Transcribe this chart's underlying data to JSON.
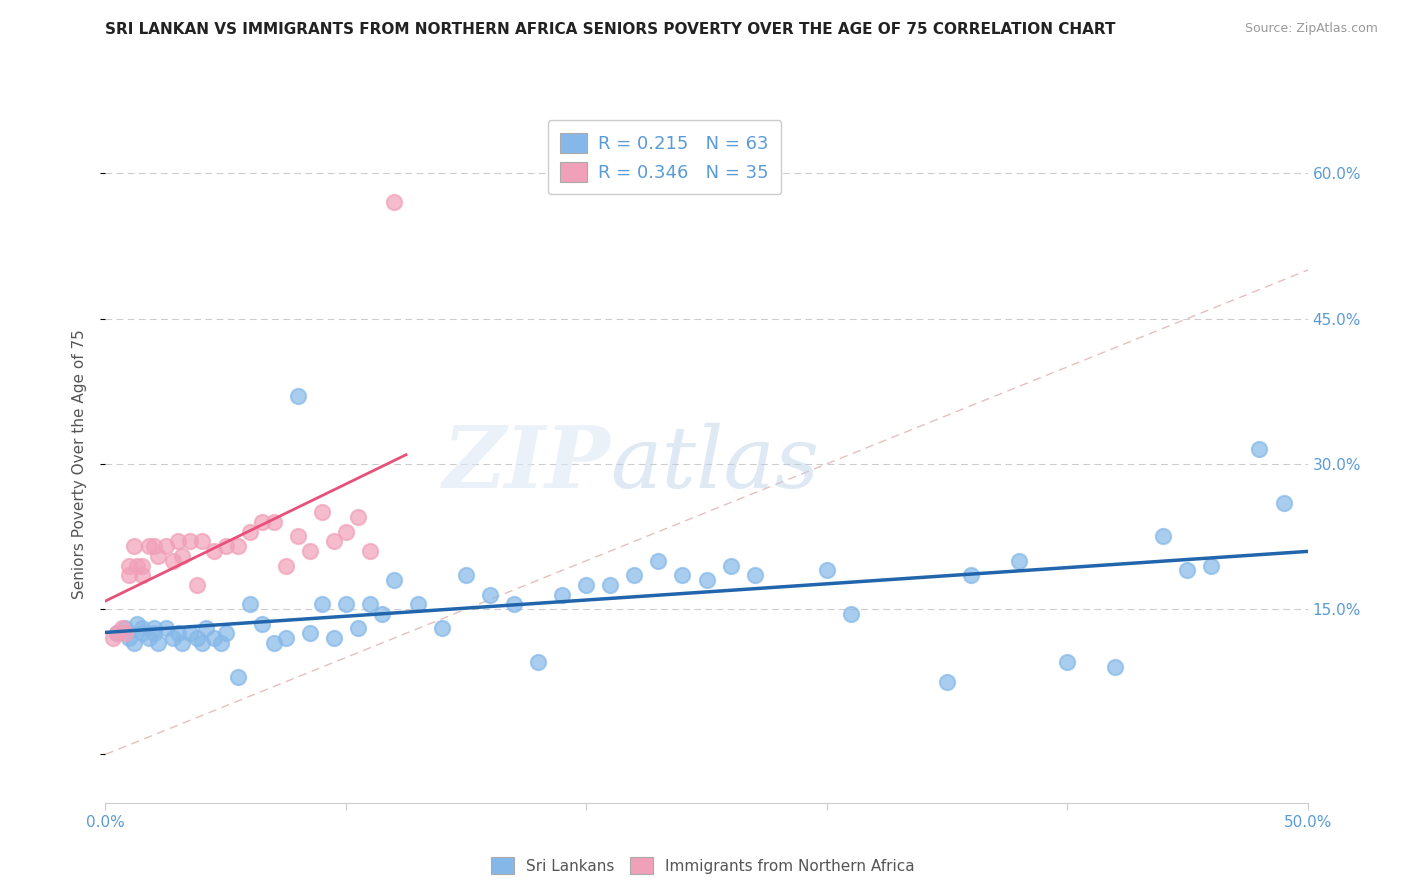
{
  "title": "SRI LANKAN VS IMMIGRANTS FROM NORTHERN AFRICA SENIORS POVERTY OVER THE AGE OF 75 CORRELATION CHART",
  "source": "Source: ZipAtlas.com",
  "ylabel": "Seniors Poverty Over the Age of 75",
  "xlim": [
    0.0,
    0.5
  ],
  "ylim": [
    -0.05,
    0.65
  ],
  "xtick_positions": [
    0.0,
    0.1,
    0.2,
    0.3,
    0.4,
    0.5
  ],
  "xticklabels": [
    "0.0%",
    "",
    "",
    "",
    "",
    "50.0%"
  ],
  "ytick_positions": [
    0.0,
    0.15,
    0.3,
    0.45,
    0.6
  ],
  "right_ytick_labels": [
    "15.0%",
    "30.0%",
    "45.0%",
    "60.0%"
  ],
  "right_ytick_positions": [
    0.15,
    0.3,
    0.45,
    0.6
  ],
  "watermark_zip": "ZIP",
  "watermark_atlas": "atlas",
  "sri_lanka_color": "#85b8e8",
  "northern_africa_color": "#f0a0b8",
  "sri_lanka_line_color": "#2166ac",
  "northern_africa_line_color": "#e8507a",
  "diag_line_color": "#e0b0b0",
  "sri_lanka_R": 0.215,
  "sri_lanka_N": 63,
  "northern_africa_R": 0.346,
  "northern_africa_N": 35,
  "sri_lanka_x": [
    0.005,
    0.008,
    0.01,
    0.012,
    0.013,
    0.015,
    0.015,
    0.018,
    0.02,
    0.02,
    0.022,
    0.025,
    0.028,
    0.03,
    0.032,
    0.035,
    0.038,
    0.04,
    0.042,
    0.045,
    0.048,
    0.05,
    0.055,
    0.06,
    0.065,
    0.07,
    0.075,
    0.08,
    0.085,
    0.09,
    0.095,
    0.1,
    0.105,
    0.11,
    0.115,
    0.12,
    0.13,
    0.14,
    0.15,
    0.16,
    0.17,
    0.18,
    0.19,
    0.2,
    0.21,
    0.22,
    0.23,
    0.24,
    0.25,
    0.26,
    0.27,
    0.3,
    0.31,
    0.35,
    0.36,
    0.38,
    0.4,
    0.42,
    0.44,
    0.45,
    0.46,
    0.48,
    0.49
  ],
  "sri_lanka_y": [
    0.125,
    0.13,
    0.12,
    0.115,
    0.135,
    0.13,
    0.125,
    0.12,
    0.13,
    0.125,
    0.115,
    0.13,
    0.12,
    0.125,
    0.115,
    0.125,
    0.12,
    0.115,
    0.13,
    0.12,
    0.115,
    0.125,
    0.08,
    0.155,
    0.135,
    0.115,
    0.12,
    0.37,
    0.125,
    0.155,
    0.12,
    0.155,
    0.13,
    0.155,
    0.145,
    0.18,
    0.155,
    0.13,
    0.185,
    0.165,
    0.155,
    0.095,
    0.165,
    0.175,
    0.175,
    0.185,
    0.2,
    0.185,
    0.18,
    0.195,
    0.185,
    0.19,
    0.145,
    0.075,
    0.185,
    0.2,
    0.095,
    0.09,
    0.225,
    0.19,
    0.195,
    0.315,
    0.26
  ],
  "northern_africa_x": [
    0.003,
    0.005,
    0.007,
    0.008,
    0.01,
    0.01,
    0.012,
    0.013,
    0.015,
    0.015,
    0.018,
    0.02,
    0.022,
    0.025,
    0.028,
    0.03,
    0.032,
    0.035,
    0.038,
    0.04,
    0.045,
    0.05,
    0.055,
    0.06,
    0.065,
    0.07,
    0.075,
    0.08,
    0.085,
    0.09,
    0.095,
    0.1,
    0.105,
    0.11,
    0.12
  ],
  "northern_africa_y": [
    0.12,
    0.125,
    0.13,
    0.125,
    0.195,
    0.185,
    0.215,
    0.195,
    0.195,
    0.185,
    0.215,
    0.215,
    0.205,
    0.215,
    0.2,
    0.22,
    0.205,
    0.22,
    0.175,
    0.22,
    0.21,
    0.215,
    0.215,
    0.23,
    0.24,
    0.24,
    0.195,
    0.225,
    0.21,
    0.25,
    0.22,
    0.23,
    0.245,
    0.21,
    0.57
  ],
  "grid_color": "#cccccc",
  "grid_style": "dashed",
  "tick_color": "#5b9bd5",
  "title_fontsize": 11,
  "axis_label_fontsize": 11,
  "legend_fontsize": 13
}
